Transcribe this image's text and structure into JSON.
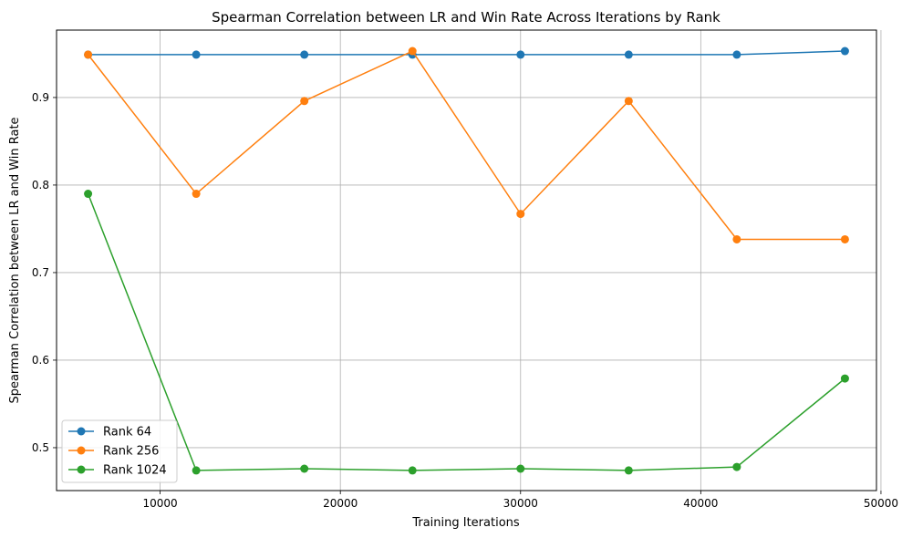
{
  "chart_data": {
    "type": "line",
    "title": "Spearman Correlation between LR and Win Rate Across Iterations by Rank",
    "xlabel": "Training Iterations",
    "ylabel": "Spearman Correlation between LR and Win Rate",
    "x": [
      6000,
      12000,
      18000,
      24000,
      30000,
      36000,
      42000,
      48000
    ],
    "xlim": [
      4250,
      49750
    ],
    "ylim": [
      0.451,
      0.977
    ],
    "xticks": [
      10000,
      20000,
      30000,
      40000,
      50000
    ],
    "xtick_labels": [
      "10000",
      "20000",
      "30000",
      "40000",
      "50000"
    ],
    "yticks": [
      0.5,
      0.6,
      0.7,
      0.8,
      0.9
    ],
    "ytick_labels": [
      "0.5",
      "0.6",
      "0.7",
      "0.8",
      "0.9"
    ],
    "grid": true,
    "legend_position": "lower-left",
    "series": [
      {
        "name": "Rank 64",
        "color": "#1f77b4",
        "values": [
          0.949,
          0.949,
          0.949,
          0.949,
          0.949,
          0.949,
          0.949,
          0.953
        ]
      },
      {
        "name": "Rank 256",
        "color": "#ff7f0e",
        "values": [
          0.949,
          0.79,
          0.896,
          0.953,
          0.767,
          0.896,
          0.738,
          0.738
        ]
      },
      {
        "name": "Rank 1024",
        "color": "#2ca02c",
        "values": [
          0.79,
          0.474,
          0.476,
          0.474,
          0.476,
          0.474,
          0.478,
          0.579
        ]
      }
    ]
  }
}
